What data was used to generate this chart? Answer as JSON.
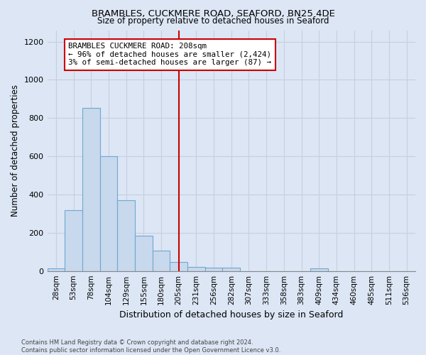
{
  "title": "BRAMBLES, CUCKMERE ROAD, SEAFORD, BN25 4DE",
  "subtitle": "Size of property relative to detached houses in Seaford",
  "xlabel": "Distribution of detached houses by size in Seaford",
  "ylabel": "Number of detached properties",
  "categories": [
    "28sqm",
    "53sqm",
    "78sqm",
    "104sqm",
    "129sqm",
    "155sqm",
    "180sqm",
    "205sqm",
    "231sqm",
    "256sqm",
    "282sqm",
    "307sqm",
    "333sqm",
    "358sqm",
    "383sqm",
    "409sqm",
    "434sqm",
    "460sqm",
    "485sqm",
    "511sqm",
    "536sqm"
  ],
  "values": [
    15,
    320,
    855,
    600,
    370,
    185,
    107,
    47,
    22,
    18,
    18,
    0,
    0,
    0,
    0,
    12,
    0,
    0,
    0,
    0,
    0
  ],
  "bar_color": "#c8d8ed",
  "bar_edge_color": "#6fa8d0",
  "vline_x": 7,
  "annotation_text_line1": "BRAMBLES CUCKMERE ROAD: 208sqm",
  "annotation_text_line2": "← 96% of detached houses are smaller (2,424)",
  "annotation_text_line3": "3% of semi-detached houses are larger (87) →",
  "vline_color": "#cc0000",
  "annotation_box_facecolor": "#ffffff",
  "annotation_box_edgecolor": "#cc0000",
  "ylim": [
    0,
    1260
  ],
  "yticks": [
    0,
    200,
    400,
    600,
    800,
    1000,
    1200
  ],
  "grid_color": "#c8cfe0",
  "bg_color": "#dce6f5",
  "footer_line1": "Contains HM Land Registry data © Crown copyright and database right 2024.",
  "footer_line2": "Contains public sector information licensed under the Open Government Licence v3.0."
}
